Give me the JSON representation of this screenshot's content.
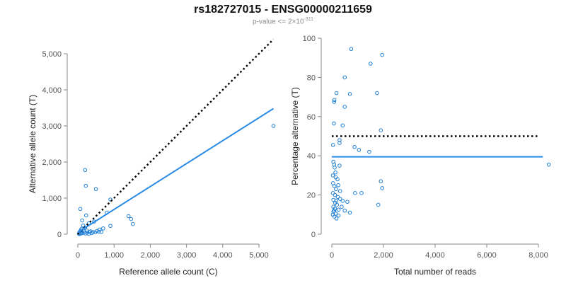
{
  "figure": {
    "title": "rs182727015 - ENSG00000211659",
    "subtitle_prefix": "p-value <= 2×10",
    "subtitle_exponent": "-311"
  },
  "colors": {
    "points": "#1f7fd6",
    "fit_line": "#2a8be6",
    "reference_line": "#000000",
    "axis": "#8a8a8a",
    "text": "#555555"
  },
  "chart_data": [
    {
      "type": "scatter",
      "xlabel": "Reference allele count (C)",
      "ylabel": "Alternative allele count (T)",
      "xlim": [
        0,
        5500
      ],
      "ylim": [
        0,
        5000
      ],
      "xticks": [
        0,
        1000,
        2000,
        3000,
        4000,
        5000
      ],
      "yticks": [
        0,
        1000,
        2000,
        3000,
        4000,
        5000
      ],
      "xtick_labels": [
        "0",
        "1,000",
        "2,000",
        "3,000",
        "4,000",
        "5,000"
      ],
      "ytick_labels": [
        "0",
        "1,000",
        "2,000",
        "3,000",
        "4,000",
        "5,000"
      ],
      "reference_line": {
        "style": "dotted",
        "points": [
          [
            0,
            0
          ],
          [
            5400,
            5400
          ]
        ]
      },
      "fit_line": {
        "style": "solid",
        "points": [
          [
            0,
            50
          ],
          [
            5400,
            3480
          ]
        ]
      },
      "points": [
        [
          5400,
          3000
        ],
        [
          200,
          1780
        ],
        [
          220,
          1340
        ],
        [
          500,
          1250
        ],
        [
          900,
          960
        ],
        [
          70,
          700
        ],
        [
          230,
          520
        ],
        [
          1400,
          500
        ],
        [
          1470,
          420
        ],
        [
          1520,
          280
        ],
        [
          800,
          600
        ],
        [
          900,
          230
        ],
        [
          120,
          380
        ],
        [
          300,
          300
        ],
        [
          450,
          350
        ],
        [
          600,
          130
        ],
        [
          700,
          160
        ],
        [
          650,
          60
        ],
        [
          150,
          240
        ],
        [
          200,
          180
        ],
        [
          250,
          100
        ],
        [
          350,
          80
        ],
        [
          420,
          60
        ],
        [
          480,
          50
        ],
        [
          530,
          90
        ],
        [
          580,
          70
        ],
        [
          100,
          150
        ],
        [
          60,
          80
        ],
        [
          40,
          40
        ],
        [
          80,
          20
        ],
        [
          110,
          60
        ],
        [
          130,
          30
        ],
        [
          160,
          90
        ],
        [
          180,
          50
        ],
        [
          210,
          20
        ],
        [
          260,
          40
        ],
        [
          300,
          10
        ],
        [
          320,
          60
        ],
        [
          380,
          30
        ],
        [
          30,
          10
        ],
        [
          50,
          5
        ],
        [
          90,
          110
        ]
      ]
    },
    {
      "type": "scatter",
      "xlabel": "Total number of reads",
      "ylabel": "Percentage alternative (T)",
      "xlim": [
        0,
        8500
      ],
      "ylim": [
        0,
        100
      ],
      "xticks": [
        0,
        2000,
        4000,
        6000,
        8000
      ],
      "yticks": [
        0,
        20,
        40,
        60,
        80,
        100
      ],
      "xtick_labels": [
        "0",
        "2,000",
        "4,000",
        "6,000",
        "8,000"
      ],
      "ytick_labels": [
        "0",
        "20",
        "40",
        "60",
        "80",
        "100"
      ],
      "reference_line": {
        "style": "dotted",
        "y": 50
      },
      "fit_line": {
        "style": "solid",
        "y": 39.5
      },
      "points": [
        [
          750,
          94.5
        ],
        [
          1950,
          91.5
        ],
        [
          1500,
          87
        ],
        [
          500,
          80
        ],
        [
          1750,
          72
        ],
        [
          180,
          72
        ],
        [
          700,
          71.5
        ],
        [
          100,
          68.5
        ],
        [
          90,
          67.5
        ],
        [
          500,
          65
        ],
        [
          80,
          56.5
        ],
        [
          420,
          55.5
        ],
        [
          1900,
          53
        ],
        [
          300,
          48
        ],
        [
          300,
          46.5
        ],
        [
          880,
          44.5
        ],
        [
          50,
          45.5
        ],
        [
          1050,
          43
        ],
        [
          1450,
          42
        ],
        [
          60,
          37
        ],
        [
          90,
          35.5
        ],
        [
          110,
          34
        ],
        [
          300,
          35
        ],
        [
          140,
          31.5
        ],
        [
          40,
          30
        ],
        [
          150,
          29
        ],
        [
          220,
          28
        ],
        [
          1900,
          27
        ],
        [
          50,
          26
        ],
        [
          250,
          25
        ],
        [
          100,
          24.5
        ],
        [
          1950,
          23.5
        ],
        [
          160,
          23
        ],
        [
          320,
          22
        ],
        [
          40,
          21
        ],
        [
          900,
          21
        ],
        [
          1150,
          21
        ],
        [
          120,
          20
        ],
        [
          230,
          19
        ],
        [
          320,
          18
        ],
        [
          60,
          17.5
        ],
        [
          170,
          17
        ],
        [
          420,
          17
        ],
        [
          600,
          16.5
        ],
        [
          1800,
          15
        ],
        [
          130,
          16
        ],
        [
          200,
          15
        ],
        [
          60,
          14
        ],
        [
          380,
          14
        ],
        [
          120,
          13
        ],
        [
          260,
          12.5
        ],
        [
          90,
          12
        ],
        [
          500,
          12
        ],
        [
          700,
          11
        ],
        [
          150,
          10.5
        ],
        [
          40,
          10
        ],
        [
          260,
          9.5
        ],
        [
          100,
          9
        ],
        [
          180,
          8
        ],
        [
          60,
          11.5
        ],
        [
          8400,
          35.5
        ]
      ]
    }
  ]
}
